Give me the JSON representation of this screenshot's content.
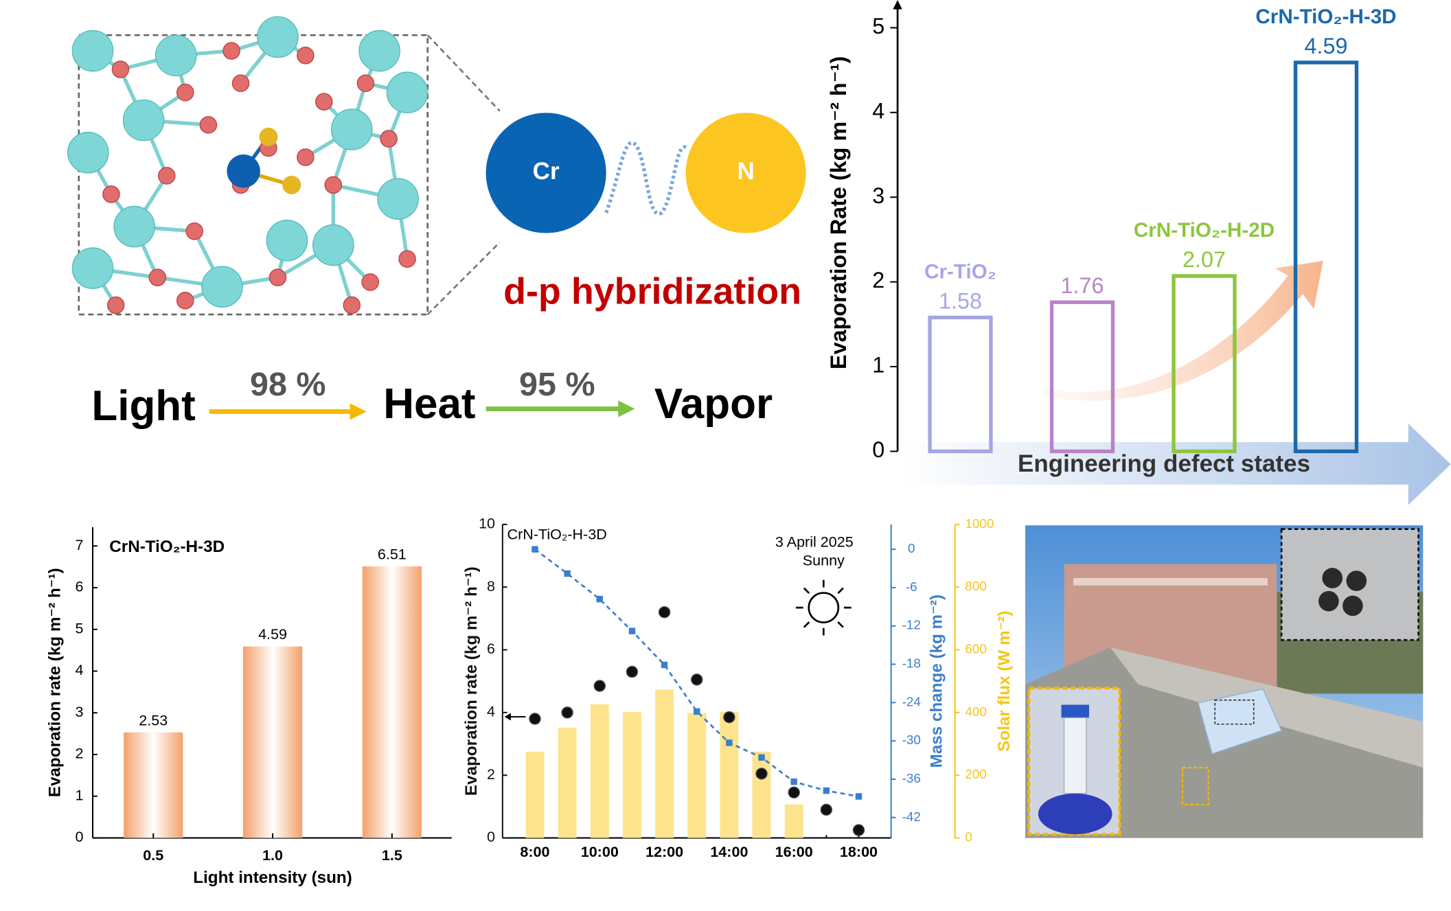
{
  "schematic": {
    "atom_a": "Cr",
    "atom_b": "N",
    "caption": "d-p hybridization",
    "flow": [
      "Light",
      "Heat",
      "Vapor"
    ],
    "efficiencies": [
      "98 %",
      "95 %"
    ]
  },
  "chart_data": [
    {
      "type": "bar",
      "style": "outline",
      "categories": [
        "Cr-TiO₂",
        null,
        "CrN-TiO₂-H-2D",
        "CrN-TiO₂-H-3D"
      ],
      "values": [
        1.58,
        1.76,
        2.07,
        4.59
      ],
      "colors": [
        "#a7a6e3",
        "#b983c9",
        "#8cc63f",
        "#1b68aa"
      ],
      "ylabel": "Evaporation Rate (kg m⁻² h⁻¹)",
      "xlabel": "Engineering defect states",
      "ylim": [
        0,
        5
      ],
      "yticks": [
        0,
        1,
        2,
        3,
        4,
        5
      ]
    },
    {
      "type": "bar",
      "style": "gradient",
      "title": "CrN-TiO₂-H-3D",
      "categories": [
        "0.5",
        "1.0",
        "1.5"
      ],
      "values": [
        2.53,
        4.59,
        6.51
      ],
      "color": "#f4a06a",
      "xlabel": "Light intensity (sun)",
      "ylabel": "Evaporation rate (kg m⁻² h⁻¹)",
      "ylim": [
        0,
        7.45
      ],
      "yticks": [
        0,
        1,
        2,
        3,
        4,
        5,
        6,
        7
      ]
    },
    {
      "type": "combo",
      "annotations": [
        "CrN-TiO₂-H-3D",
        "3 April 2025",
        "Sunny"
      ],
      "categories": [
        "8:00",
        null,
        "10:00",
        null,
        "12:00",
        null,
        "14:00",
        null,
        "16:00",
        null,
        "18:00"
      ],
      "ylabel": "Evaporation rate (kg m⁻² h⁻¹)",
      "y2label": "Mass change (kg m⁻²)",
      "y3label": "Solar flux (W m⁻²)",
      "ylim": [
        0,
        10
      ],
      "yticks": [
        0,
        2,
        4,
        6,
        8,
        10
      ],
      "y2lim": [
        -45.2,
        3.9
      ],
      "y2ticks": [
        0,
        -6,
        -12,
        -18,
        -24,
        -30,
        -36,
        -42
      ],
      "y3lim": [
        0,
        1000
      ],
      "y3ticks": [
        0,
        200,
        400,
        600,
        800,
        1000
      ],
      "series": [
        {
          "kind": "scatter",
          "axis": "y",
          "color": "#111111",
          "values": [
            3.8,
            4.0,
            4.85,
            5.3,
            7.2,
            5.05,
            3.85,
            2.05,
            1.45,
            0.9,
            0.25
          ]
        },
        {
          "kind": "line",
          "axis": "y2",
          "color": "#3b7fcc",
          "values": [
            0,
            -3.8,
            -7.8,
            -12.8,
            -18.1,
            -25.4,
            -30.3,
            -32.6,
            -36.4,
            -37.8,
            -38.7
          ]
        },
        {
          "kind": "bar",
          "axis": "y3",
          "color": "#fde48c",
          "values": [
            275,
            352,
            426,
            402,
            473,
            399,
            402,
            275,
            107,
            null,
            null
          ]
        }
      ],
      "axis_colors": {
        "y": "#111111",
        "y2": "#3b7fcc",
        "y3": "#f5c518"
      }
    }
  ]
}
